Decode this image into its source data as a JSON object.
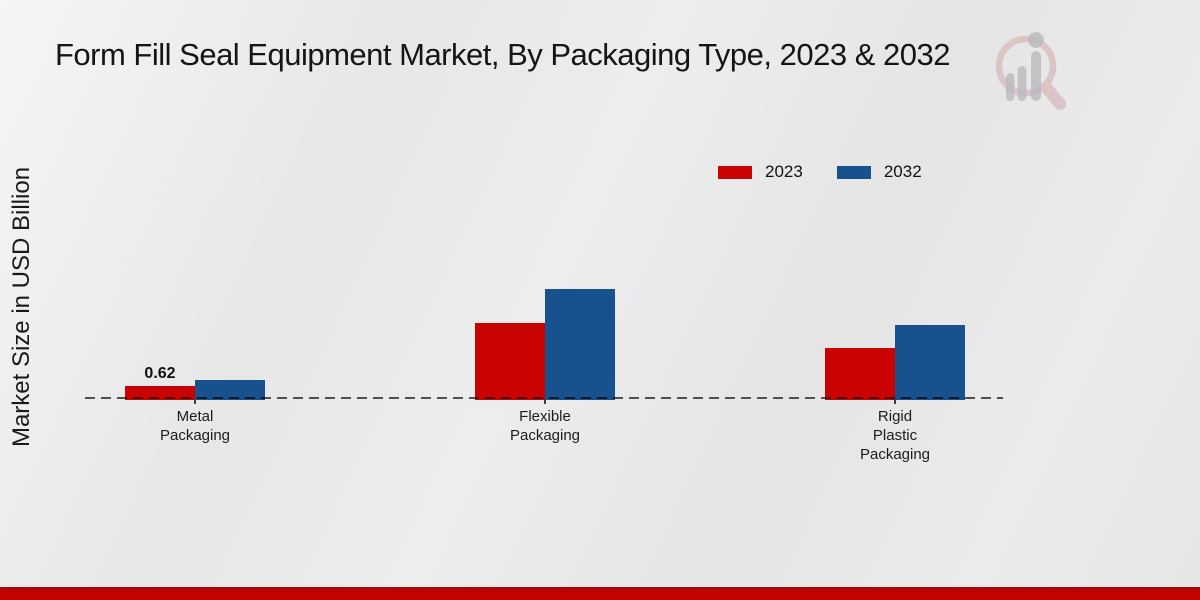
{
  "chart_data": {
    "type": "bar",
    "title": "Form Fill Seal Equipment Market, By Packaging Type, 2023 & 2032",
    "ylabel": "Market Size in USD Billion",
    "xlabel": "",
    "categories": [
      "Metal\nPackaging",
      "Flexible\nPackaging",
      "Rigid\nPlastic\nPackaging"
    ],
    "series": [
      {
        "name": "2023",
        "color": "#c90202",
        "values": [
          0.62,
          3.4,
          2.3
        ],
        "data_labels": [
          "0.62",
          null,
          null
        ]
      },
      {
        "name": "2032",
        "color": "#17528f",
        "values": [
          0.89,
          4.92,
          3.32
        ],
        "data_labels": [
          null,
          null,
          null
        ]
      }
    ],
    "ylim": [
      0,
      5.5
    ],
    "grid": false,
    "y_tick_labels_visible": false,
    "baseline_style": "dashed",
    "legend_position": "top-right"
  },
  "watermark": {
    "icon": "magnifier-bar-chart-logo"
  },
  "footer": {
    "band_color": "#c30202"
  }
}
